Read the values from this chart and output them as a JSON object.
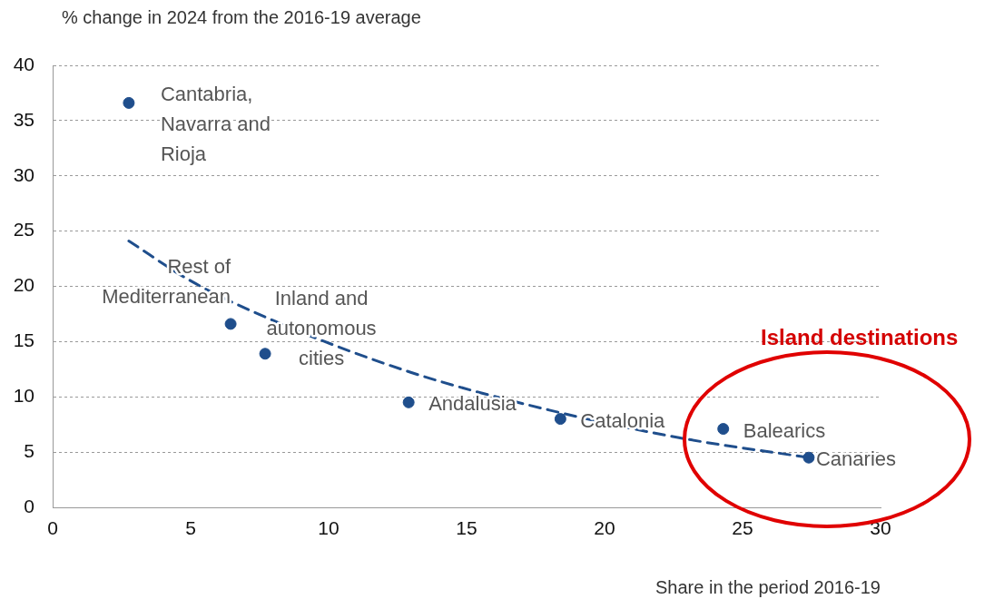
{
  "chart_data": {
    "type": "scatter",
    "ylabel": "% change in 2024 from the 2016-19 average",
    "xlabel": "Share in the period 2016-19",
    "series": [
      {
        "type": "scatter",
        "color": "#1f4e8c",
        "x": [
          2.76,
          6.45,
          7.7,
          12.9,
          18.4,
          24.3,
          27.4
        ],
        "values": [
          36.6,
          16.6,
          13.9,
          9.5,
          8.0,
          7.1,
          4.5
        ]
      },
      {
        "type": "line",
        "color": "#1f4e8c",
        "line_style": "dashed",
        "marker": "none",
        "x": [
          2.76,
          5,
          8,
          13,
          18,
          22.7,
          27.4
        ],
        "values": [
          24.1,
          20.5,
          16.9,
          12.2,
          8.8,
          6.3,
          4.5
        ]
      }
    ],
    "xlim": [
      0,
      30
    ],
    "xticks": [
      0,
      5,
      10,
      15,
      20,
      25,
      30
    ],
    "ylim": [
      0,
      40
    ],
    "yticks": [
      0,
      5,
      10,
      15,
      20,
      25,
      30,
      35,
      40
    ],
    "grid": "y",
    "legend": false,
    "marker": "circle",
    "annotations": [
      {
        "text": "Cantabria, Navarra and Rioja",
        "x": 2.76,
        "y": 36.6
      },
      {
        "text": "Rest of Mediterranean",
        "x": 6.45,
        "y": 16.6
      },
      {
        "text": "Inland and autonomous cities",
        "x": 7.7,
        "y": 13.9
      },
      {
        "text": "Andalusia",
        "x": 12.9,
        "y": 9.5
      },
      {
        "text": "Catalonia",
        "x": 18.4,
        "y": 8.0
      },
      {
        "text": "Balearics",
        "x": 24.3,
        "y": 7.1
      },
      {
        "text": "Canaries",
        "x": 27.4,
        "y": 4.5
      },
      "Island destinations"
    ]
  }
}
